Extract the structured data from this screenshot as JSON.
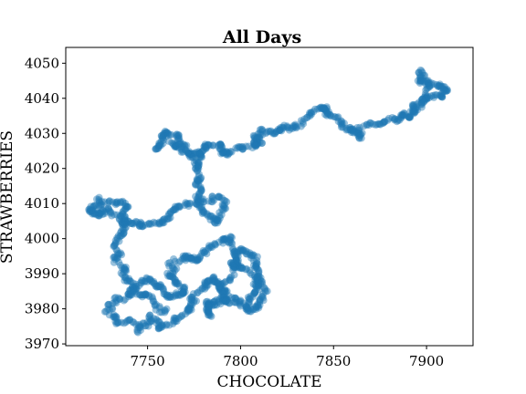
{
  "chart_data": {
    "type": "scatter",
    "title": "All Days",
    "xlabel": "CHOCOLATE",
    "ylabel": "STRAWBERRIES",
    "xlim": [
      7706,
      7925
    ],
    "ylim": [
      3969.5,
      4054.5
    ],
    "x_ticks": [
      7750,
      7800,
      7850,
      7900
    ],
    "y_ticks": [
      3970,
      3980,
      3990,
      4000,
      4010,
      4020,
      4030,
      4040,
      4050
    ],
    "grid": false,
    "legend": "none",
    "marker_color": "#1f77b4",
    "marker_alpha": 0.45,
    "series": [
      {
        "points_count": 1500,
        "path_anchors": [
          [
            7893,
            4036
          ],
          [
            7900,
            4041
          ],
          [
            7903,
            4044
          ],
          [
            7897,
            4047
          ],
          [
            7900,
            4044
          ],
          [
            7911,
            4042
          ],
          [
            7901,
            4039
          ],
          [
            7891,
            4035
          ],
          [
            7885,
            4035
          ],
          [
            7878,
            4034
          ],
          [
            7868,
            4032
          ],
          [
            7863,
            4029
          ],
          [
            7860,
            4032
          ],
          [
            7852,
            4033
          ],
          [
            7847,
            4036
          ],
          [
            7842,
            4038
          ],
          [
            7835,
            4034
          ],
          [
            7827,
            4032
          ],
          [
            7820,
            4030
          ],
          [
            7812,
            4031
          ],
          [
            7808,
            4029
          ],
          [
            7811,
            4027
          ],
          [
            7803,
            4027
          ],
          [
            7797,
            4024
          ],
          [
            7790,
            4024
          ],
          [
            7790,
            4027
          ],
          [
            7783,
            4027
          ],
          [
            7780,
            4023
          ],
          [
            7776,
            4024
          ],
          [
            7770,
            4023
          ],
          [
            7765,
            4026
          ],
          [
            7757,
            4026
          ],
          [
            7755,
            4026
          ],
          [
            7762,
            4030
          ],
          [
            7768,
            4029
          ],
          [
            7772,
            4026
          ],
          [
            7777,
            4022
          ],
          [
            7780,
            4018
          ],
          [
            7778,
            4014
          ],
          [
            7776,
            4012
          ],
          [
            7781,
            4012
          ],
          [
            7787,
            4011
          ],
          [
            7790,
            4008
          ],
          [
            7786,
            4005
          ],
          [
            7782,
            4006
          ],
          [
            7778,
            4008
          ],
          [
            7773,
            4009
          ],
          [
            7765,
            4008
          ],
          [
            7760,
            4005
          ],
          [
            7752,
            4004
          ],
          [
            7746,
            4004
          ],
          [
            7738,
            4006
          ],
          [
            7731,
            4008
          ],
          [
            7724,
            4006
          ],
          [
            7718,
            4008
          ],
          [
            7722,
            4010
          ],
          [
            7732,
            4012
          ],
          [
            7736,
            4010
          ],
          [
            7737,
            4005
          ],
          [
            7733,
            4002
          ],
          [
            7730,
            3998
          ],
          [
            7733,
            3994
          ],
          [
            7737,
            3990
          ],
          [
            7741,
            3986
          ],
          [
            7746,
            3988
          ],
          [
            7751,
            3988
          ],
          [
            7757,
            3985
          ],
          [
            7764,
            3983
          ],
          [
            7771,
            3983
          ],
          [
            7767,
            3986
          ],
          [
            7763,
            3990
          ],
          [
            7765,
            3994
          ],
          [
            7770,
            3995
          ],
          [
            7776,
            3994
          ],
          [
            7781,
            3996
          ],
          [
            7786,
            3999
          ],
          [
            7792,
            4000
          ],
          [
            7796,
            3996
          ],
          [
            7800,
            3993
          ],
          [
            7803,
            3990
          ],
          [
            7808,
            3988
          ],
          [
            7810,
            3984
          ],
          [
            7806,
            3981
          ],
          [
            7798,
            3982
          ],
          [
            7792,
            3986
          ],
          [
            7786,
            3983
          ],
          [
            7780,
            3981
          ],
          [
            7784,
            3978
          ],
          [
            7789,
            3983
          ],
          [
            7794,
            3982
          ],
          [
            7802,
            3980
          ],
          [
            7808,
            3981
          ],
          [
            7812,
            3986
          ],
          [
            7808,
            3992
          ],
          [
            7803,
            3996
          ],
          [
            7798,
            3997
          ],
          [
            7796,
            3991
          ],
          [
            7793,
            3986
          ],
          [
            7784,
            3988
          ],
          [
            7778,
            3985
          ],
          [
            7773,
            3983
          ],
          [
            7770,
            3978
          ],
          [
            7764,
            3976
          ],
          [
            7758,
            3975
          ],
          [
            7752,
            3977
          ],
          [
            7746,
            3974
          ],
          [
            7740,
            3976
          ],
          [
            7734,
            3977
          ],
          [
            7731,
            3982
          ],
          [
            7738,
            3984
          ],
          [
            7743,
            3986
          ],
          [
            7749,
            3984
          ],
          [
            7754,
            3982
          ],
          [
            7759,
            3980
          ]
        ]
      }
    ]
  }
}
